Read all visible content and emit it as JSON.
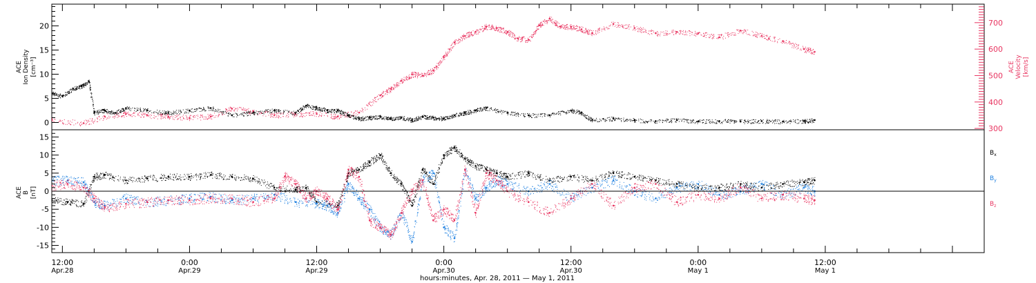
{
  "colors": {
    "black": "#000000",
    "pink": "#e8335f",
    "blue": "#1f80e0",
    "axis": "#000000"
  },
  "x_axis": {
    "range_hours": [
      -1,
      87
    ],
    "ticks": [
      {
        "h": 0,
        "l1": "12:00",
        "l2": "Apr.28"
      },
      {
        "h": 12,
        "l1": "0:00",
        "l2": "Apr.29"
      },
      {
        "h": 24,
        "l1": "12:00",
        "l2": "Apr.29"
      },
      {
        "h": 36,
        "l1": "0:00",
        "l2": "Apr.30"
      },
      {
        "h": 48,
        "l1": "12:00",
        "l2": "Apr.30"
      },
      {
        "h": 60,
        "l1": "0:00",
        "l2": "May 1"
      },
      {
        "h": 72,
        "l1": "12:00",
        "l2": "May 1"
      }
    ],
    "title": "hours:minutes, Apr. 28, 2011 — May  1, 2011"
  },
  "top_panel": {
    "left_label": [
      "ACE",
      "Ion Density",
      "[cm⁻³]"
    ],
    "right_label": [
      "ACE",
      "Velocity",
      "[km/s]"
    ],
    "left_ticks": [
      0,
      5,
      10,
      15,
      20
    ],
    "right_ticks": [
      300,
      400,
      500,
      600,
      700
    ]
  },
  "bottom_panel": {
    "left_label": [
      "ACE",
      "B",
      "[nT]"
    ],
    "ticks": [
      -15,
      -10,
      -5,
      0,
      5,
      10,
      15
    ],
    "legend": [
      {
        "label": "B",
        "sub": "x",
        "color": "#000000"
      },
      {
        "label": "B",
        "sub": "y",
        "color": "#1f80e0"
      },
      {
        "label": "B",
        "sub": "z",
        "color": "#e8335f"
      }
    ]
  },
  "chart_data": [
    {
      "type": "scatter",
      "xlabel": "hours:minutes, Apr. 28, 2011 — May  1, 2011",
      "ylabel": "ACE Ion Density [cm⁻³]",
      "ylabel_right": "ACE Velocity [km/s]",
      "ylim": [
        -1.5,
        24.5
      ],
      "ylim_right": [
        295,
        770
      ],
      "grid": false,
      "x_units": "hours after Apr.28 12:00 UT",
      "series": [
        {
          "name": "",
          "axis": "left",
          "color": "#000000",
          "x": [
            -1,
            0,
            1,
            1.8,
            2.5,
            3,
            4,
            5,
            6,
            8,
            10,
            12,
            14,
            16,
            18,
            20,
            22,
            23,
            24,
            25,
            26,
            27,
            28,
            29,
            30,
            31,
            32,
            33,
            34,
            35,
            36,
            37,
            38,
            39,
            40,
            42,
            44,
            46,
            48,
            49,
            50,
            52,
            54,
            56,
            58,
            60,
            62,
            64,
            66,
            68,
            70,
            71
          ],
          "y": [
            6,
            5.5,
            7,
            7.5,
            8.5,
            2,
            2.5,
            2,
            3,
            2.5,
            2,
            2.5,
            3,
            1.5,
            2,
            2.5,
            2,
            3.5,
            3,
            2.5,
            2.5,
            1.5,
            0.8,
            1,
            1.2,
            0.8,
            1,
            0.5,
            1.2,
            1,
            0.8,
            1.5,
            2,
            2.5,
            3,
            2,
            1.5,
            1.5,
            2.5,
            2,
            0.5,
            0.8,
            0.5,
            0.3,
            0.5,
            0.2,
            0.3,
            0.2,
            0.3,
            0.2,
            0.3,
            0.5
          ]
        },
        {
          "name": "",
          "axis": "right",
          "color": "#e8335f",
          "x": [
            -1,
            2,
            4,
            6,
            8,
            10,
            12,
            14,
            16,
            18,
            20,
            22,
            24,
            26,
            28,
            30,
            31,
            32,
            33,
            34,
            35,
            36,
            37,
            38,
            39,
            40,
            41,
            42,
            43,
            44,
            45,
            46,
            47,
            48,
            49,
            50,
            52,
            54,
            56,
            58,
            60,
            62,
            64,
            66,
            68,
            70,
            71
          ],
          "y": [
            330,
            320,
            345,
            355,
            350,
            345,
            340,
            345,
            375,
            365,
            350,
            355,
            355,
            345,
            360,
            425,
            450,
            480,
            505,
            500,
            520,
            570,
            625,
            650,
            665,
            685,
            680,
            665,
            640,
            635,
            690,
            715,
            685,
            685,
            675,
            660,
            695,
            680,
            660,
            665,
            660,
            645,
            670,
            650,
            630,
            600,
            590
          ]
        }
      ]
    },
    {
      "type": "scatter",
      "ylabel": "ACE B [nT]",
      "ylim": [
        -17,
        17
      ],
      "grid": false,
      "x_units": "hours after Apr.28 12:00 UT",
      "series": [
        {
          "name": "Bx",
          "color": "#000000",
          "x": [
            -1,
            0.5,
            2,
            3,
            4,
            6,
            8,
            10,
            12,
            14,
            16,
            18,
            20,
            22,
            23,
            24,
            26,
            27,
            28,
            29,
            30,
            31,
            32,
            33,
            34,
            35,
            36,
            37,
            38,
            39,
            40,
            41,
            42,
            44,
            46,
            48,
            50,
            52,
            54,
            56,
            58,
            60,
            62,
            64,
            66,
            68,
            70,
            71
          ],
          "y": [
            -2.5,
            -3,
            -3.5,
            4,
            4.5,
            3,
            3.5,
            4,
            4,
            4.5,
            4,
            3.5,
            1,
            0.5,
            1,
            -3,
            -4,
            5,
            6,
            8,
            10,
            5,
            2,
            -4,
            6,
            2,
            10,
            12,
            9,
            7,
            6,
            5,
            4,
            5,
            3,
            4,
            3,
            5,
            4,
            3,
            2,
            1,
            1,
            2,
            1,
            2,
            2.5,
            3
          ]
        },
        {
          "name": "By",
          "color": "#1f80e0",
          "x": [
            -1,
            0.5,
            2,
            3,
            4,
            6,
            8,
            10,
            12,
            14,
            16,
            18,
            20,
            22,
            24,
            25,
            26,
            27,
            28,
            29,
            30,
            31,
            32,
            33,
            34,
            35,
            36,
            37,
            38,
            39,
            40,
            41,
            42,
            44,
            46,
            48,
            50,
            52,
            54,
            56,
            58,
            60,
            62,
            64,
            66,
            68,
            70,
            71
          ],
          "y": [
            3,
            3,
            2.5,
            -3,
            -4,
            -2,
            -3,
            -2.5,
            -2,
            -1.5,
            -2.5,
            -2,
            -1,
            -3,
            -3.5,
            -4,
            -6,
            2,
            -2,
            -5,
            -10,
            -12,
            -6,
            -14,
            3,
            5,
            -10,
            -13,
            6,
            -2,
            1,
            3,
            2,
            0,
            2,
            -2,
            1,
            3,
            0,
            -2,
            1,
            2,
            -1,
            0,
            2,
            -1,
            1,
            0
          ]
        },
        {
          "name": "Bz",
          "color": "#e8335f",
          "x": [
            -1,
            0.5,
            2,
            3,
            4,
            6,
            8,
            10,
            12,
            14,
            16,
            18,
            20,
            21,
            22,
            23,
            24,
            25,
            26,
            27,
            28,
            29,
            30,
            31,
            32,
            33,
            34,
            35,
            36,
            37,
            38,
            39,
            40,
            41,
            42,
            44,
            46,
            48,
            50,
            52,
            54,
            56,
            58,
            60,
            62,
            64,
            66,
            68,
            70,
            71
          ],
          "y": [
            1.5,
            2,
            1,
            -2,
            -4.5,
            -3.5,
            -3,
            -2.5,
            -2.5,
            -2,
            -2,
            -3,
            -2,
            4,
            2,
            -2,
            0,
            -2,
            -5,
            6,
            4,
            -8,
            -10,
            -12,
            -6,
            0,
            3,
            -8,
            -5,
            -8,
            6,
            -6,
            5,
            3,
            0,
            -3,
            -6,
            -2,
            2,
            -4,
            1,
            2,
            -3,
            -1,
            -2,
            1,
            -2,
            -1,
            -2,
            -2.5
          ]
        }
      ]
    }
  ]
}
